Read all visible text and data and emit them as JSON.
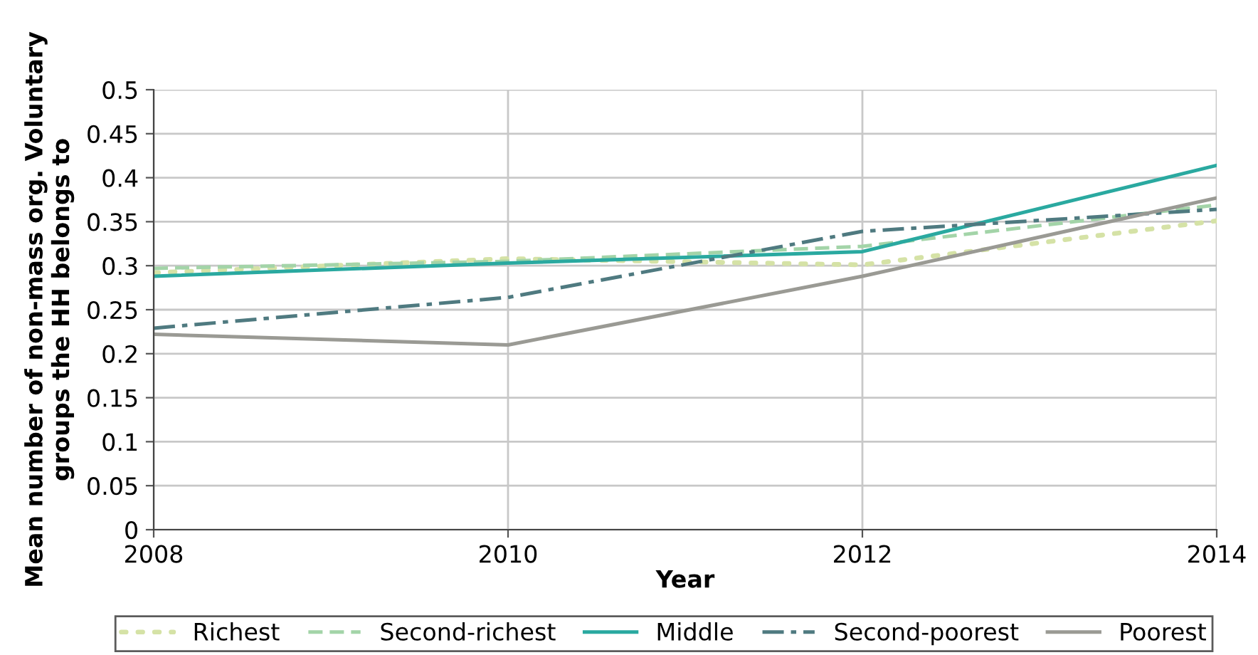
{
  "chart_data": {
    "type": "line",
    "xlabel": "Year",
    "ylabel": "Mean number of non-mass org. Voluntary\ngroups the HH belongs to",
    "x": [
      2008,
      2010,
      2012,
      2014
    ],
    "xlim": [
      2008,
      2014
    ],
    "xticks": [
      2008,
      2010,
      2012,
      2014
    ],
    "ylim": [
      0,
      0.5
    ],
    "yticks": [
      0,
      0.05,
      0.1,
      0.15,
      0.2,
      0.25,
      0.3,
      0.35,
      0.4,
      0.45,
      0.5
    ],
    "grid": true,
    "legend": "bottom",
    "marker": "none",
    "series": [
      {
        "name": "Richest",
        "color": "#d5e2a6",
        "line_style": "dotted",
        "values": [
          0.292,
          0.308,
          0.301,
          0.351
        ]
      },
      {
        "name": "Second-richest",
        "color": "#a3d4a8",
        "line_style": "dashed",
        "values": [
          0.297,
          0.305,
          0.322,
          0.369
        ]
      },
      {
        "name": "Middle",
        "color": "#2aa9a0",
        "line_style": "solid",
        "values": [
          0.288,
          0.303,
          0.316,
          0.414
        ]
      },
      {
        "name": "Second-poorest",
        "color": "#4f7a80",
        "line_style": "dashdot",
        "values": [
          0.229,
          0.264,
          0.339,
          0.364
        ]
      },
      {
        "name": "Poorest",
        "color": "#9a9a94",
        "line_style": "solid",
        "values": [
          0.222,
          0.21,
          0.288,
          0.377
        ]
      }
    ]
  }
}
